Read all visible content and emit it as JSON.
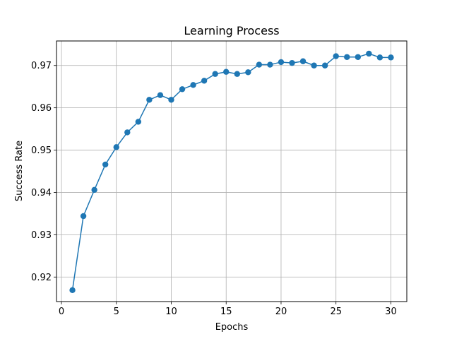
{
  "chart_data": {
    "type": "line",
    "title": "Learning Process",
    "xlabel": "Epochs",
    "ylabel": "Success Rate",
    "xlim": [
      -0.45,
      31.45
    ],
    "ylim": [
      0.9142,
      0.9758
    ],
    "xticks": [
      0,
      5,
      10,
      15,
      20,
      25,
      30
    ],
    "yticks": [
      0.92,
      0.93,
      0.94,
      0.95,
      0.96,
      0.97
    ],
    "ytick_labels": [
      "0.92",
      "0.93",
      "0.94",
      "0.95",
      "0.96",
      "0.97"
    ],
    "grid": true,
    "markers": true,
    "series_color": "#1f77b4",
    "series": [
      {
        "x": [
          1,
          2,
          3,
          4,
          5,
          6,
          7,
          8,
          9,
          10,
          11,
          12,
          13,
          14,
          15,
          16,
          17,
          18,
          19,
          20,
          21,
          22,
          23,
          24,
          25,
          26,
          27,
          28,
          29,
          30
        ],
        "values": [
          0.9169,
          0.9344,
          0.9406,
          0.9466,
          0.9507,
          0.9542,
          0.9567,
          0.9619,
          0.963,
          0.9619,
          0.9644,
          0.9654,
          0.9664,
          0.968,
          0.9685,
          0.968,
          0.9684,
          0.9702,
          0.9702,
          0.9708,
          0.9706,
          0.971,
          0.97,
          0.97,
          0.9722,
          0.972,
          0.972,
          0.9728,
          0.9719,
          0.9719
        ]
      }
    ]
  }
}
